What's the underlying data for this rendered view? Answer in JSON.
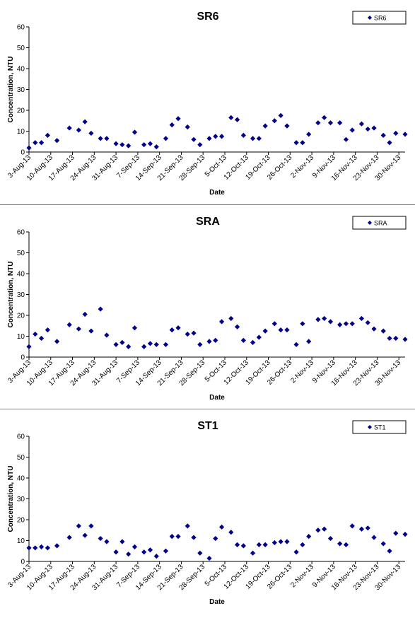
{
  "chart_data": [
    {
      "type": "scatter",
      "title": "SR6",
      "xlabel": "Date",
      "ylabel": "Concentration, NTU",
      "ylim": [
        0,
        60
      ],
      "yticks": [
        "0",
        "10",
        "20",
        "30",
        "40",
        "50",
        "60"
      ],
      "xticks": [
        "3-Aug-13",
        "10-Aug-13",
        "17-Aug-13",
        "24-Aug-13",
        "31-Aug-13",
        "7-Sep-13",
        "14-Sep-13",
        "21-Sep-13",
        "28-Sep-13",
        "5-Oct-13",
        "12-Oct-13",
        "19-Oct-13",
        "26-Oct-13",
        "2-Nov-13",
        "9-Nov-13",
        "16-Nov-13",
        "23-Nov-13",
        "30-Nov-13"
      ],
      "legend": "top-right",
      "grid": false,
      "marker_color": "#00008B",
      "series": [
        {
          "name": "SR6",
          "x": [
            "3-Aug-13",
            "5-Aug-13",
            "7-Aug-13",
            "9-Aug-13",
            "12-Aug-13",
            "16-Aug-13",
            "19-Aug-13",
            "21-Aug-13",
            "23-Aug-13",
            "26-Aug-13",
            "28-Aug-13",
            "31-Aug-13",
            "2-Sep-13",
            "4-Sep-13",
            "6-Sep-13",
            "9-Sep-13",
            "11-Sep-13",
            "13-Sep-13",
            "16-Sep-13",
            "18-Sep-13",
            "20-Sep-13",
            "23-Sep-13",
            "25-Sep-13",
            "27-Sep-13",
            "30-Sep-13",
            "2-Oct-13",
            "4-Oct-13",
            "7-Oct-13",
            "9-Oct-13",
            "11-Oct-13",
            "14-Oct-13",
            "16-Oct-13",
            "18-Oct-13",
            "21-Oct-13",
            "23-Oct-13",
            "25-Oct-13",
            "28-Oct-13",
            "30-Oct-13",
            "1-Nov-13",
            "4-Nov-13",
            "6-Nov-13",
            "8-Nov-13",
            "11-Nov-13",
            "13-Nov-13",
            "15-Nov-13",
            "18-Nov-13",
            "20-Nov-13",
            "22-Nov-13",
            "25-Nov-13",
            "27-Nov-13",
            "29-Nov-13",
            "2-Dec-13"
          ],
          "values": [
            2,
            4.5,
            4.5,
            8,
            5.5,
            11.5,
            10.5,
            14.5,
            9,
            6.5,
            6.5,
            4,
            3.5,
            3,
            9.5,
            3.5,
            4,
            2.5,
            6.5,
            13,
            16,
            12,
            6,
            3.5,
            6.5,
            7.5,
            7.5,
            16.5,
            15.5,
            8,
            6.5,
            6.5,
            12.5,
            15,
            17.5,
            12.5,
            4.5,
            4.5,
            8.5,
            14,
            16.5,
            14,
            14,
            6,
            10.5,
            13.5,
            11,
            11.5,
            8,
            4.5,
            9,
            8.5
          ]
        }
      ]
    },
    {
      "type": "scatter",
      "title": "SRA",
      "xlabel": "Date",
      "ylabel": "Concentration, NTU",
      "ylim": [
        0,
        60
      ],
      "yticks": [
        "0",
        "10",
        "20",
        "30",
        "40",
        "50",
        "60"
      ],
      "xticks": [
        "3-Aug-13",
        "10-Aug-13",
        "17-Aug-13",
        "24-Aug-13",
        "31-Aug-13",
        "7-Sep-13",
        "14-Sep-13",
        "21-Sep-13",
        "28-Sep-13",
        "5-Oct-13",
        "12-Oct-13",
        "19-Oct-13",
        "26-Oct-13",
        "2-Nov-13",
        "9-Nov-13",
        "16-Nov-13",
        "23-Nov-13",
        "30-Nov-13"
      ],
      "legend": "top-right",
      "grid": false,
      "marker_color": "#00008B",
      "series": [
        {
          "name": "SRA",
          "x": [
            "3-Aug-13",
            "5-Aug-13",
            "7-Aug-13",
            "9-Aug-13",
            "12-Aug-13",
            "16-Aug-13",
            "19-Aug-13",
            "21-Aug-13",
            "23-Aug-13",
            "26-Aug-13",
            "28-Aug-13",
            "31-Aug-13",
            "2-Sep-13",
            "4-Sep-13",
            "6-Sep-13",
            "9-Sep-13",
            "11-Sep-13",
            "13-Sep-13",
            "16-Sep-13",
            "18-Sep-13",
            "20-Sep-13",
            "23-Sep-13",
            "25-Sep-13",
            "27-Sep-13",
            "30-Sep-13",
            "2-Oct-13",
            "4-Oct-13",
            "7-Oct-13",
            "9-Oct-13",
            "11-Oct-13",
            "14-Oct-13",
            "16-Oct-13",
            "18-Oct-13",
            "21-Oct-13",
            "23-Oct-13",
            "25-Oct-13",
            "28-Oct-13",
            "30-Oct-13",
            "1-Nov-13",
            "4-Nov-13",
            "6-Nov-13",
            "8-Nov-13",
            "11-Nov-13",
            "13-Nov-13",
            "15-Nov-13",
            "18-Nov-13",
            "20-Nov-13",
            "22-Nov-13",
            "25-Nov-13",
            "27-Nov-13",
            "29-Nov-13",
            "2-Dec-13"
          ],
          "values": [
            5,
            11,
            9,
            13,
            7.5,
            15.5,
            13.5,
            20.5,
            12.5,
            23,
            10.5,
            6,
            7,
            5,
            14,
            5,
            6.5,
            6,
            6,
            13,
            14,
            11,
            11.5,
            6,
            7.5,
            8,
            17,
            18.5,
            14.5,
            8,
            7,
            9.5,
            12.5,
            16,
            13,
            13,
            6,
            16,
            7.5,
            18,
            18.5,
            17,
            15.5,
            16,
            16,
            18.5,
            16.5,
            13.5,
            12.5,
            9,
            9,
            8.5
          ]
        }
      ]
    },
    {
      "type": "scatter",
      "title": "ST1",
      "xlabel": "Date",
      "ylabel": "Concentration, NTU",
      "ylim": [
        0,
        60
      ],
      "yticks": [
        "0",
        "10",
        "20",
        "30",
        "40",
        "50",
        "60"
      ],
      "xticks": [
        "3-Aug-13",
        "10-Aug-13",
        "17-Aug-13",
        "24-Aug-13",
        "31-Aug-13",
        "7-Sep-13",
        "14-Sep-13",
        "21-Sep-13",
        "28-Sep-13",
        "5-Oct-13",
        "12-Oct-13",
        "19-Oct-13",
        "26-Oct-13",
        "2-Nov-13",
        "9-Nov-13",
        "16-Nov-13",
        "23-Nov-13",
        "30-Nov-13"
      ],
      "legend": "top-right",
      "grid": false,
      "marker_color": "#00008B",
      "series": [
        {
          "name": "ST1",
          "x": [
            "3-Aug-13",
            "5-Aug-13",
            "7-Aug-13",
            "9-Aug-13",
            "12-Aug-13",
            "16-Aug-13",
            "19-Aug-13",
            "21-Aug-13",
            "23-Aug-13",
            "26-Aug-13",
            "28-Aug-13",
            "31-Aug-13",
            "2-Sep-13",
            "4-Sep-13",
            "6-Sep-13",
            "9-Sep-13",
            "11-Sep-13",
            "13-Sep-13",
            "16-Sep-13",
            "18-Sep-13",
            "20-Sep-13",
            "23-Sep-13",
            "25-Sep-13",
            "27-Sep-13",
            "30-Sep-13",
            "2-Oct-13",
            "4-Oct-13",
            "7-Oct-13",
            "9-Oct-13",
            "11-Oct-13",
            "14-Oct-13",
            "16-Oct-13",
            "18-Oct-13",
            "21-Oct-13",
            "23-Oct-13",
            "25-Oct-13",
            "28-Oct-13",
            "30-Oct-13",
            "1-Nov-13",
            "4-Nov-13",
            "6-Nov-13",
            "8-Nov-13",
            "11-Nov-13",
            "13-Nov-13",
            "15-Nov-13",
            "18-Nov-13",
            "20-Nov-13",
            "22-Nov-13",
            "25-Nov-13",
            "27-Nov-13",
            "29-Nov-13",
            "2-Dec-13"
          ],
          "values": [
            6.5,
            6.5,
            7,
            6.5,
            7.5,
            11.5,
            17,
            12.5,
            17,
            11,
            9.5,
            4.5,
            9.5,
            3.5,
            7,
            4.5,
            5.5,
            2.5,
            5,
            12,
            12,
            17,
            11.5,
            4,
            1.5,
            11,
            16.5,
            14,
            8,
            7.5,
            4,
            8,
            8,
            9,
            9.5,
            9.5,
            4.5,
            8,
            12,
            15,
            15.5,
            11,
            8.5,
            8,
            17,
            15.5,
            16,
            11.5,
            8.5,
            5,
            13.5,
            13
          ]
        }
      ]
    }
  ]
}
